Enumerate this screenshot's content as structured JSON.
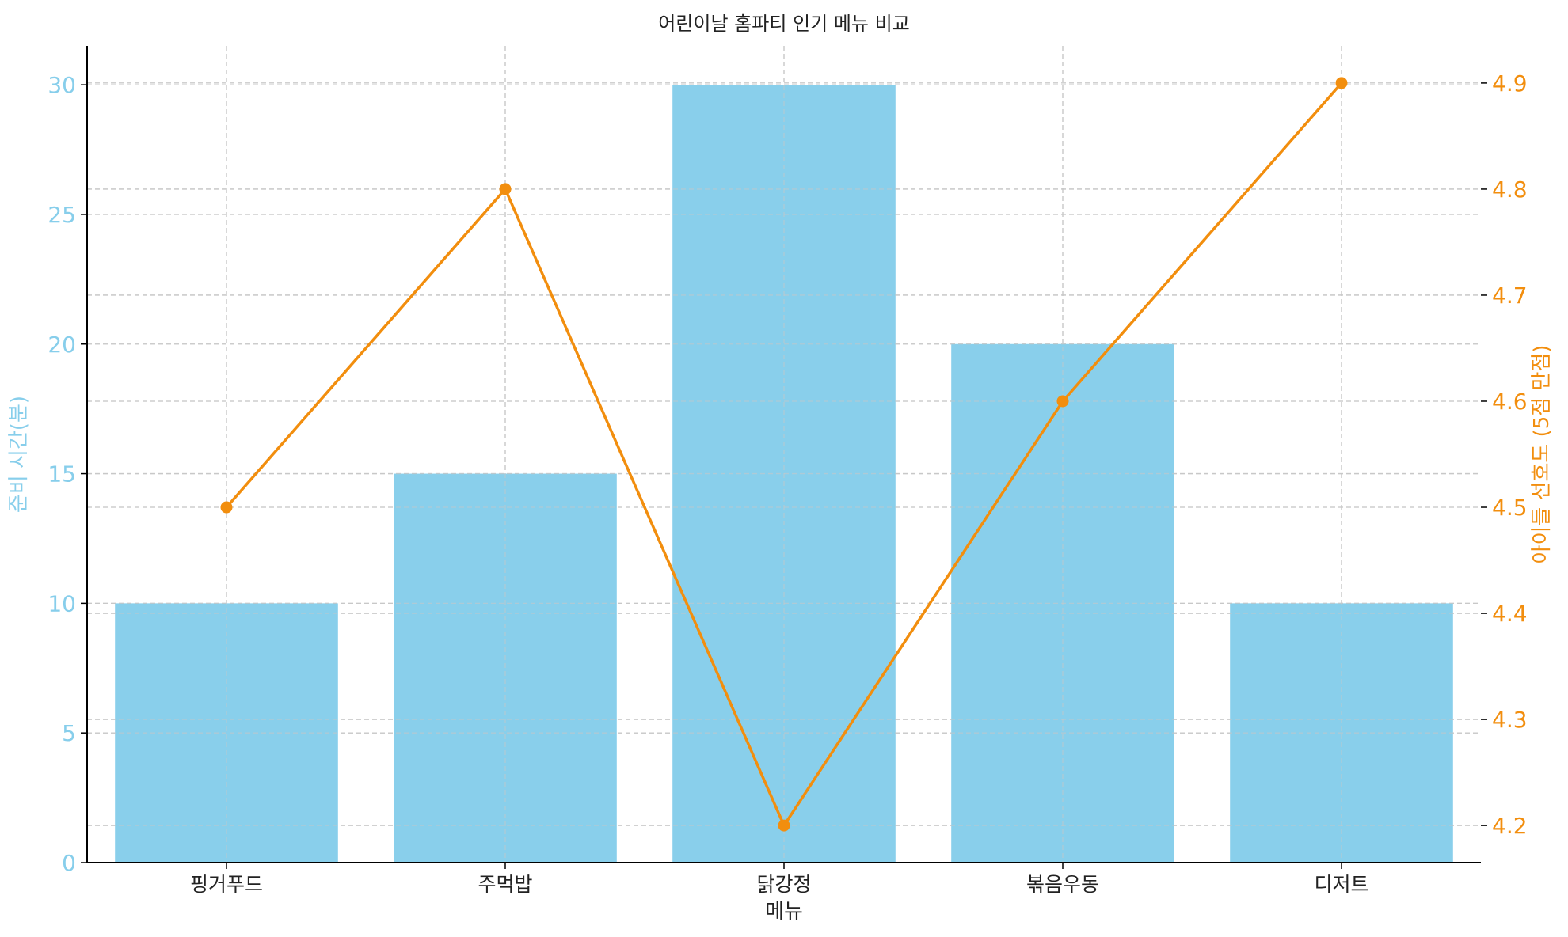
{
  "chart_data": {
    "type": "bar",
    "title": "어린이날 홈파티 인기 메뉴 비교",
    "xlabel": "메뉴",
    "categories": [
      "핑거푸드",
      "주먹밥",
      "닭강정",
      "볶음우동",
      "디저트"
    ],
    "grid": true,
    "left_axis": {
      "label": "준비 시간(분)",
      "ylim": [
        0,
        31.5
      ],
      "ticks": [
        0,
        5,
        10,
        15,
        20,
        25,
        30
      ],
      "color": "#87ceeb"
    },
    "right_axis": {
      "label": "아이들 선호도 (5점 만점)",
      "ylim": [
        4.165,
        4.935
      ],
      "ticks": [
        4.2,
        4.3,
        4.4,
        4.5,
        4.6,
        4.7,
        4.8,
        4.9
      ],
      "color": "#f28e0e"
    },
    "series": [
      {
        "type": "bar",
        "axis": "left",
        "color": "#87ceeb",
        "values": [
          10,
          15,
          30,
          20,
          10
        ]
      },
      {
        "type": "line",
        "axis": "right",
        "color": "#f28e0e",
        "values": [
          4.5,
          4.8,
          4.2,
          4.6,
          4.9
        ]
      }
    ]
  }
}
